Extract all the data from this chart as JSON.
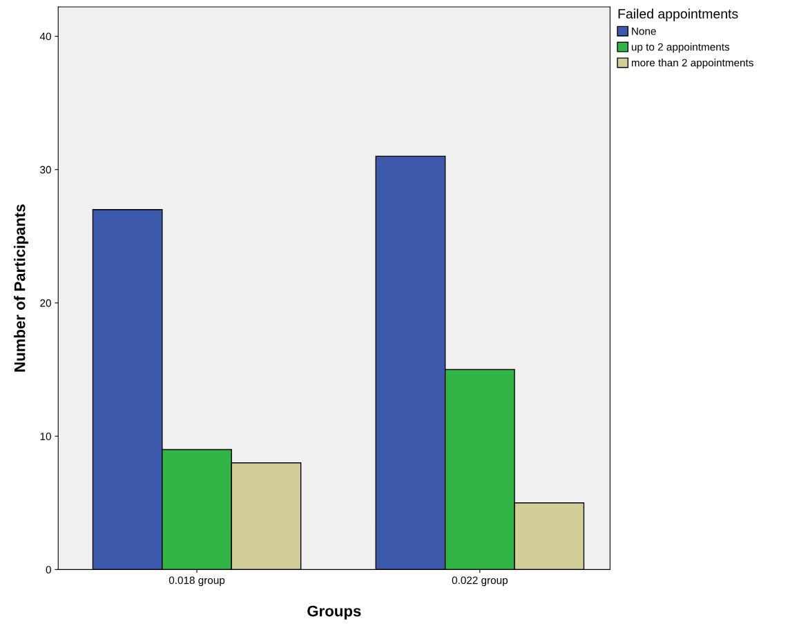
{
  "chart_data": {
    "type": "bar",
    "xlabel": "Groups",
    "ylabel": "Number of Participants",
    "legend_title": "Failed appointments",
    "categories": [
      "0.018 group",
      "0.022 group"
    ],
    "series": [
      {
        "name": "None",
        "color": "#3d59ab",
        "values": [
          27,
          31
        ]
      },
      {
        "name": "up to 2 appointments",
        "color": "#30b546",
        "values": [
          9,
          15
        ]
      },
      {
        "name": "more than 2 appointments",
        "color": "#d3ce97",
        "values": [
          8,
          5
        ]
      }
    ],
    "ylim": [
      0,
      42.2
    ],
    "yticks": [
      0,
      10,
      20,
      30,
      40
    ],
    "grid": false,
    "legend": "top right"
  }
}
